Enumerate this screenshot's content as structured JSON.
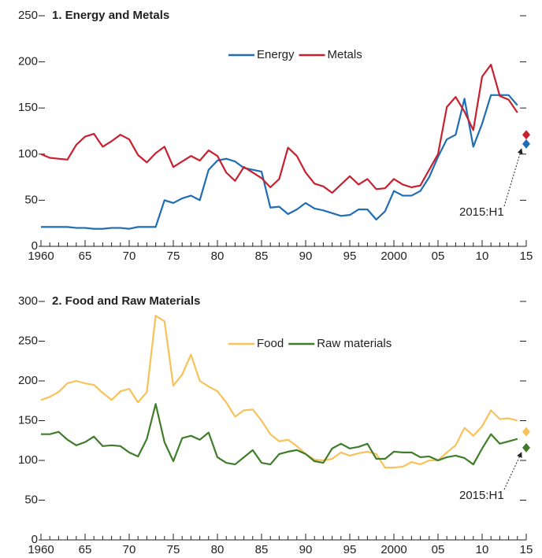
{
  "chart_data": [
    {
      "type": "line",
      "title": "1. Energy and Metals",
      "x": [
        1960,
        1961,
        1962,
        1963,
        1964,
        1965,
        1966,
        1967,
        1968,
        1969,
        1970,
        1971,
        1972,
        1973,
        1974,
        1975,
        1976,
        1977,
        1978,
        1979,
        1980,
        1981,
        1982,
        1983,
        1984,
        1985,
        1986,
        1987,
        1988,
        1989,
        1990,
        1991,
        1992,
        1993,
        1994,
        1995,
        1996,
        1997,
        1998,
        1999,
        2000,
        2001,
        2002,
        2003,
        2004,
        2005,
        2006,
        2007,
        2008,
        2009,
        2010,
        2011,
        2012,
        2013,
        2014
      ],
      "series": [
        {
          "name": "Energy",
          "color": "#1f6db5",
          "values": [
            21,
            21,
            21,
            21,
            20,
            20,
            19,
            19,
            20,
            20,
            19,
            21,
            21,
            21,
            50,
            47,
            52,
            55,
            50,
            83,
            93,
            95,
            92,
            85,
            83,
            81,
            42,
            43,
            35,
            40,
            47,
            41,
            39,
            36,
            33,
            34,
            40,
            40,
            29,
            38,
            60,
            55,
            55,
            60,
            75,
            97,
            116,
            121,
            160,
            108,
            133,
            164,
            164,
            164,
            153
          ],
          "marker_value": 111
        },
        {
          "name": "Metals",
          "color": "#c8202f",
          "values": [
            100,
            96,
            95,
            94,
            110,
            119,
            122,
            108,
            114,
            121,
            116,
            99,
            91,
            101,
            108,
            86,
            92,
            98,
            93,
            104,
            98,
            80,
            71,
            86,
            80,
            74,
            64,
            73,
            107,
            98,
            80,
            68,
            65,
            58,
            67,
            76,
            67,
            73,
            62,
            63,
            73,
            67,
            64,
            66,
            83,
            100,
            151,
            162,
            146,
            126,
            184,
            197,
            163,
            159,
            145
          ],
          "marker_value": 121
        }
      ],
      "xlim": [
        1960,
        2015
      ],
      "xticks": [
        1960,
        {
          "value": 1965,
          "label": "65"
        },
        {
          "value": 1970,
          "label": "70"
        },
        {
          "value": 1975,
          "label": "75"
        },
        {
          "value": 1980,
          "label": "80"
        },
        {
          "value": 1985,
          "label": "85"
        },
        {
          "value": 1990,
          "label": "90"
        },
        {
          "value": 1995,
          "label": "95"
        },
        2000,
        {
          "value": 2005,
          "label": "05"
        },
        {
          "value": 2010,
          "label": "10"
        },
        {
          "value": 2015,
          "label": "15"
        }
      ],
      "ylim": [
        0,
        250
      ],
      "yticks": [
        0,
        50,
        100,
        150,
        200,
        250
      ],
      "annotation": {
        "text": "2015:H1",
        "x": 2015
      }
    },
    {
      "type": "line",
      "title": "2. Food and Raw Materials",
      "x": [
        1960,
        1961,
        1962,
        1963,
        1964,
        1965,
        1966,
        1967,
        1968,
        1969,
        1970,
        1971,
        1972,
        1973,
        1974,
        1975,
        1976,
        1977,
        1978,
        1979,
        1980,
        1981,
        1982,
        1983,
        1984,
        1985,
        1986,
        1987,
        1988,
        1989,
        1990,
        1991,
        1992,
        1993,
        1994,
        1995,
        1996,
        1997,
        1998,
        1999,
        2000,
        2001,
        2002,
        2003,
        2004,
        2005,
        2006,
        2007,
        2008,
        2009,
        2010,
        2011,
        2012,
        2013,
        2014
      ],
      "series": [
        {
          "name": "Food",
          "color": "#f7c25a",
          "values": [
            176,
            180,
            186,
            197,
            200,
            197,
            195,
            185,
            176,
            187,
            190,
            173,
            186,
            282,
            275,
            194,
            208,
            233,
            200,
            193,
            187,
            173,
            155,
            163,
            164,
            150,
            133,
            124,
            126,
            118,
            108,
            101,
            100,
            102,
            110,
            106,
            109,
            111,
            108,
            91,
            91,
            92,
            98,
            95,
            100,
            100,
            110,
            119,
            141,
            131,
            143,
            163,
            152,
            153,
            150
          ],
          "marker_value": 136
        },
        {
          "name": "Raw materials",
          "color": "#3f7d2a",
          "values": [
            133,
            133,
            136,
            126,
            119,
            123,
            130,
            118,
            119,
            118,
            110,
            105,
            127,
            171,
            123,
            99,
            128,
            131,
            126,
            135,
            104,
            97,
            95,
            104,
            113,
            97,
            95,
            108,
            111,
            113,
            108,
            99,
            97,
            115,
            121,
            115,
            117,
            121,
            102,
            102,
            111,
            110,
            110,
            104,
            105,
            100,
            104,
            106,
            103,
            95,
            115,
            133,
            121,
            124,
            127
          ],
          "marker_value": 116
        }
      ],
      "xlim": [
        1960,
        2015
      ],
      "xticks": [
        1960,
        {
          "value": 1965,
          "label": "65"
        },
        {
          "value": 1970,
          "label": "70"
        },
        {
          "value": 1975,
          "label": "75"
        },
        {
          "value": 1980,
          "label": "80"
        },
        {
          "value": 1985,
          "label": "85"
        },
        {
          "value": 1990,
          "label": "90"
        },
        {
          "value": 1995,
          "label": "95"
        },
        2000,
        {
          "value": 2005,
          "label": "05"
        },
        {
          "value": 2010,
          "label": "10"
        },
        {
          "value": 2015,
          "label": "15"
        }
      ],
      "ylim": [
        0,
        300
      ],
      "yticks": [
        0,
        50,
        100,
        150,
        200,
        250,
        300
      ],
      "annotation": {
        "text": "2015:H1",
        "x": 2015
      }
    }
  ]
}
